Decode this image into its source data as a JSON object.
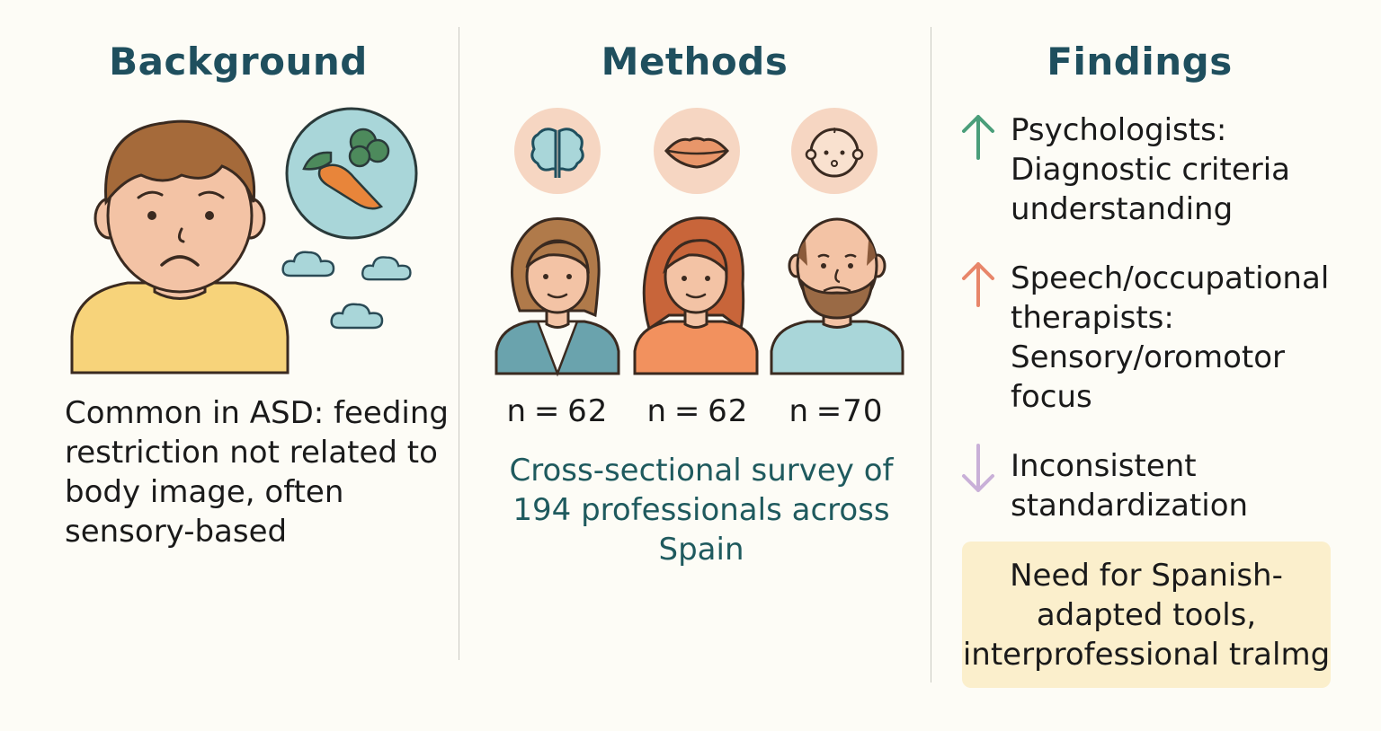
{
  "background": {
    "title": "Background",
    "text": "Common in ASD: feeding restriction not related to body image, often sensory-based",
    "icons": [
      "sad-child-icon",
      "carrot-broccoli-icon",
      "cloud-icon"
    ]
  },
  "methods": {
    "title": "Methods",
    "groups": [
      {
        "icon": "brain-icon",
        "person": "psychologist-woman-icon",
        "n": "n = 62"
      },
      {
        "icon": "lips-icon",
        "person": "speech-therapist-woman-icon",
        "n": "n = 62"
      },
      {
        "icon": "baby-face-icon",
        "person": "bearded-man-icon",
        "n": "n =70"
      }
    ],
    "text": "Cross-sectional survey of 194 professionals across Spain"
  },
  "findings": {
    "title": "Findings",
    "items": [
      {
        "arrow": "up-arrow-icon",
        "color": "#4a9e7a",
        "text": "Psychologists: Diagnostic criteria understanding"
      },
      {
        "arrow": "up-arrow-icon",
        "color": "#e8866a",
        "text": "Speech/occupational therapists: Sensory/oromotor focus"
      },
      {
        "arrow": "down-arrow-icon",
        "color": "#c9b0d8",
        "text": "Inconsistent standardization"
      }
    ],
    "callout": "Need for Spanish-adapted tools, interprofessional tralmg"
  },
  "colors": {
    "title": "#1f4f5e",
    "background": "#fdfcf6",
    "callout": "#fbefcc",
    "accent_teal": "#1f5a5e"
  }
}
